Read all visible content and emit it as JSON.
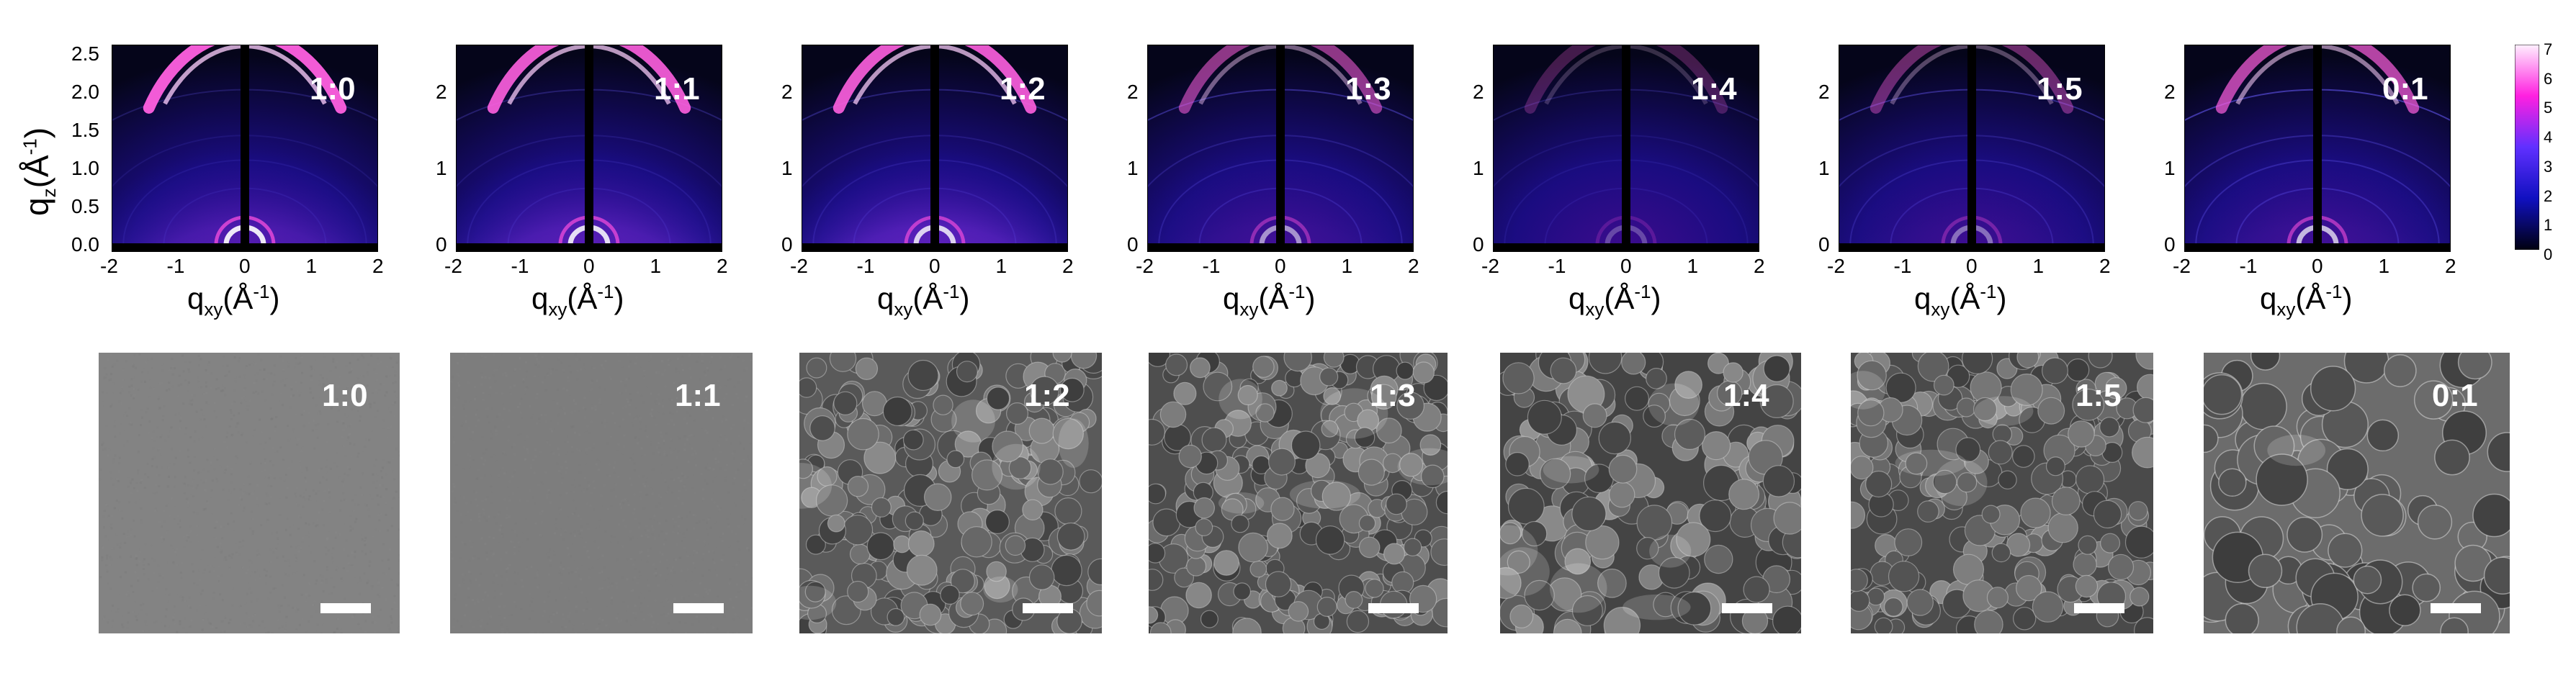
{
  "gixd_panels": [
    {
      "label": "1:0"
    },
    {
      "label": "1:1"
    },
    {
      "label": "1:2"
    },
    {
      "label": "1:3"
    },
    {
      "label": "1:4"
    },
    {
      "label": "1:5"
    },
    {
      "label": "0:1"
    }
  ],
  "sem_panels": [
    {
      "label": "1:0"
    },
    {
      "label": "1:1"
    },
    {
      "label": "1:2"
    },
    {
      "label": "1:3"
    },
    {
      "label": "1:4"
    },
    {
      "label": "1:5"
    },
    {
      "label": "0:1"
    }
  ],
  "y_ticks_first": [
    "2.5",
    "2.0",
    "1.5",
    "1.0",
    "0.5",
    "0.0"
  ],
  "y_ticks_other": [
    "2",
    "1",
    "0"
  ],
  "x_ticks": [
    "-2",
    "-1",
    "0",
    "1",
    "2"
  ],
  "y_axis_label": {
    "q": "q",
    "sub": "z",
    "unit": "(Å",
    "sup": "-1",
    "close": ")"
  },
  "x_axis_label": {
    "q": "q",
    "sub": "xy",
    "unit": "(Å",
    "sup": "-1",
    "close": ")"
  },
  "colorbar_ticks": [
    "7",
    "6",
    "5",
    "4",
    "3",
    "2",
    "1",
    "0"
  ],
  "colors": {
    "scalebar": "#ffffff",
    "ratio_text": "#ffffff"
  }
}
